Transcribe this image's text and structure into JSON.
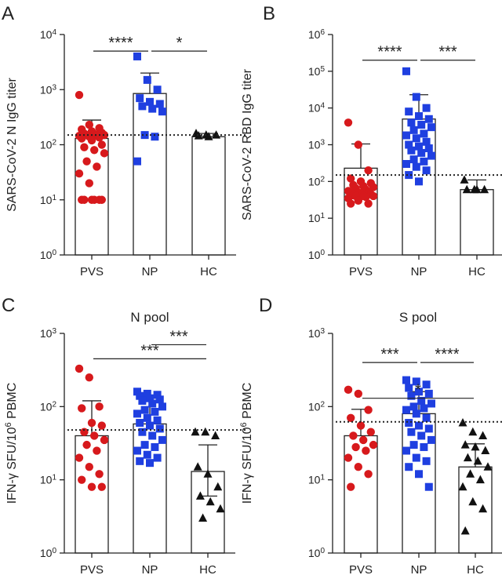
{
  "colors": {
    "PVS": "#d7191c",
    "NP": "#1f3fe0",
    "HC": "#111111"
  },
  "markers": {
    "PVS": "circle",
    "NP": "square",
    "HC": "triangle"
  },
  "chart_data": [
    {
      "panel": "A",
      "type": "scatter",
      "subtitle": "",
      "ylabel_main": "SARS-CoV-2 N IgG titer",
      "ylabel_sup": "",
      "ylabel_rest": "",
      "yscale": "log",
      "ylim": [
        1,
        10000
      ],
      "yticks": [
        {
          "base": "10",
          "exp": "0"
        },
        {
          "base": "10",
          "exp": "1"
        },
        {
          "base": "10",
          "exp": "2"
        },
        {
          "base": "10",
          "exp": "3"
        },
        {
          "base": "10",
          "exp": "4"
        }
      ],
      "categories": [
        "PVS",
        "NP",
        "HC"
      ],
      "bars": [
        130,
        850,
        140
      ],
      "errors": [
        [
          null,
          280
        ],
        [
          null,
          2000
        ],
        [
          null,
          160
        ]
      ],
      "threshold": 150,
      "points": [
        [
          800,
          230,
          200,
          190,
          175,
          165,
          160,
          155,
          150,
          150,
          150,
          145,
          140,
          135,
          130,
          120,
          100,
          90,
          80,
          70,
          50,
          40,
          30,
          20,
          10,
          10,
          10,
          10,
          10,
          10
        ],
        [
          4000,
          1500,
          1000,
          700,
          600,
          550,
          500,
          450,
          400,
          150,
          140,
          50
        ],
        [
          160,
          150,
          150,
          145,
          140
        ]
      ],
      "brackets": [
        {
          "from": 0,
          "to": 1,
          "label": "****",
          "y": 5000
        },
        {
          "from": 1,
          "to": 2,
          "label": "*",
          "y": 5000
        }
      ]
    },
    {
      "panel": "B",
      "type": "scatter",
      "subtitle": "",
      "ylabel_main": "SARS-CoV-2 RBD IgG titer",
      "ylabel_sup": "",
      "ylabel_rest": "",
      "yscale": "log",
      "ylim": [
        1,
        1000000
      ],
      "yticks": [
        {
          "base": "10",
          "exp": "0"
        },
        {
          "base": "10",
          "exp": "1"
        },
        {
          "base": "10",
          "exp": "2"
        },
        {
          "base": "10",
          "exp": "3"
        },
        {
          "base": "10",
          "exp": "4"
        },
        {
          "base": "10",
          "exp": "5"
        },
        {
          "base": "10",
          "exp": "6"
        }
      ],
      "categories": [
        "PVS",
        "NP",
        "HC"
      ],
      "bars": [
        230,
        5000,
        60
      ],
      "errors": [
        [
          null,
          1050
        ],
        [
          null,
          23000
        ],
        [
          null,
          110
        ]
      ],
      "threshold": 150,
      "points": [
        [
          4000,
          1000,
          200,
          120,
          100,
          90,
          80,
          75,
          70,
          65,
          60,
          55,
          50,
          50,
          50,
          48,
          45,
          42,
          40,
          40,
          40,
          38,
          35,
          30,
          25,
          25
        ],
        [
          100000,
          20000,
          10000,
          8000,
          6000,
          5000,
          4000,
          3500,
          3000,
          2500,
          2000,
          1800,
          1500,
          1200,
          1000,
          900,
          800,
          700,
          600,
          500,
          400,
          350,
          300,
          250,
          200,
          150,
          100
        ],
        [
          110,
          60,
          60,
          60,
          60
        ]
      ],
      "brackets": [
        {
          "from": 0,
          "to": 1,
          "label": "****",
          "y": 200000
        },
        {
          "from": 1,
          "to": 2,
          "label": "***",
          "y": 200000
        }
      ]
    },
    {
      "panel": "C",
      "type": "scatter",
      "subtitle": "N pool",
      "ylabel_main": "IFN-γ SFU/10",
      "ylabel_sup": "6",
      "ylabel_rest": " PBMC",
      "yscale": "log",
      "ylim": [
        1,
        1000
      ],
      "yticks": [
        {
          "base": "10",
          "exp": "0"
        },
        {
          "base": "10",
          "exp": "1"
        },
        {
          "base": "10",
          "exp": "2"
        },
        {
          "base": "10",
          "exp": "3"
        }
      ],
      "categories": [
        "PVS",
        "NP",
        "HC"
      ],
      "bars": [
        40,
        58,
        13
      ],
      "errors": [
        [
          null,
          120
        ],
        [
          null,
          130
        ],
        [
          6,
          30
        ]
      ],
      "threshold": 48,
      "points": [
        [
          330,
          250,
          100,
          95,
          60,
          55,
          45,
          40,
          35,
          30,
          25,
          20,
          15,
          12,
          10,
          8,
          8
        ],
        [
          160,
          150,
          145,
          140,
          130,
          125,
          120,
          110,
          100,
          90,
          85,
          80,
          70,
          65,
          60,
          55,
          50,
          45,
          40,
          35,
          30,
          28,
          25,
          22,
          20,
          18,
          17
        ],
        [
          45,
          45,
          40,
          15,
          12,
          8,
          6,
          5,
          4,
          3
        ]
      ],
      "brackets": [
        {
          "from": 0,
          "to": 2,
          "label": "***",
          "y": 450
        },
        {
          "from": 1,
          "to": 2,
          "label": "***",
          "y": 700
        }
      ]
    },
    {
      "panel": "D",
      "type": "scatter",
      "subtitle": "S pool",
      "ylabel_main": "IFN-γ SFU/10",
      "ylabel_sup": "6",
      "ylabel_rest": " PBMC",
      "yscale": "log",
      "ylim": [
        1,
        1000
      ],
      "yticks": [
        {
          "base": "10",
          "exp": "0"
        },
        {
          "base": "10",
          "exp": "1"
        },
        {
          "base": "10",
          "exp": "2"
        },
        {
          "base": "10",
          "exp": "3"
        }
      ],
      "categories": [
        "PVS",
        "NP",
        "HC"
      ],
      "bars": [
        40,
        80,
        15
      ],
      "errors": [
        [
          null,
          92
        ],
        [
          null,
          160
        ],
        [
          null,
          31
        ]
      ],
      "threshold": 62,
      "points": [
        [
          170,
          150,
          90,
          70,
          55,
          45,
          40,
          35,
          30,
          28,
          25,
          20,
          15,
          12,
          8
        ],
        [
          230,
          220,
          200,
          180,
          160,
          150,
          140,
          120,
          110,
          100,
          95,
          90,
          80,
          70,
          60,
          55,
          50,
          45,
          40,
          35,
          30,
          28,
          25,
          20,
          18,
          15,
          12,
          8
        ],
        [
          60,
          45,
          40,
          30,
          28,
          25,
          20,
          18,
          15,
          12,
          10,
          8,
          5,
          4,
          2
        ]
      ],
      "brackets": [
        {
          "from": 0,
          "to": 2,
          "label": "*",
          "y": 130
        },
        {
          "from": 0,
          "to": 1,
          "label": "***",
          "y": 400
        },
        {
          "from": 1,
          "to": 2,
          "label": "****",
          "y": 400
        }
      ]
    }
  ]
}
